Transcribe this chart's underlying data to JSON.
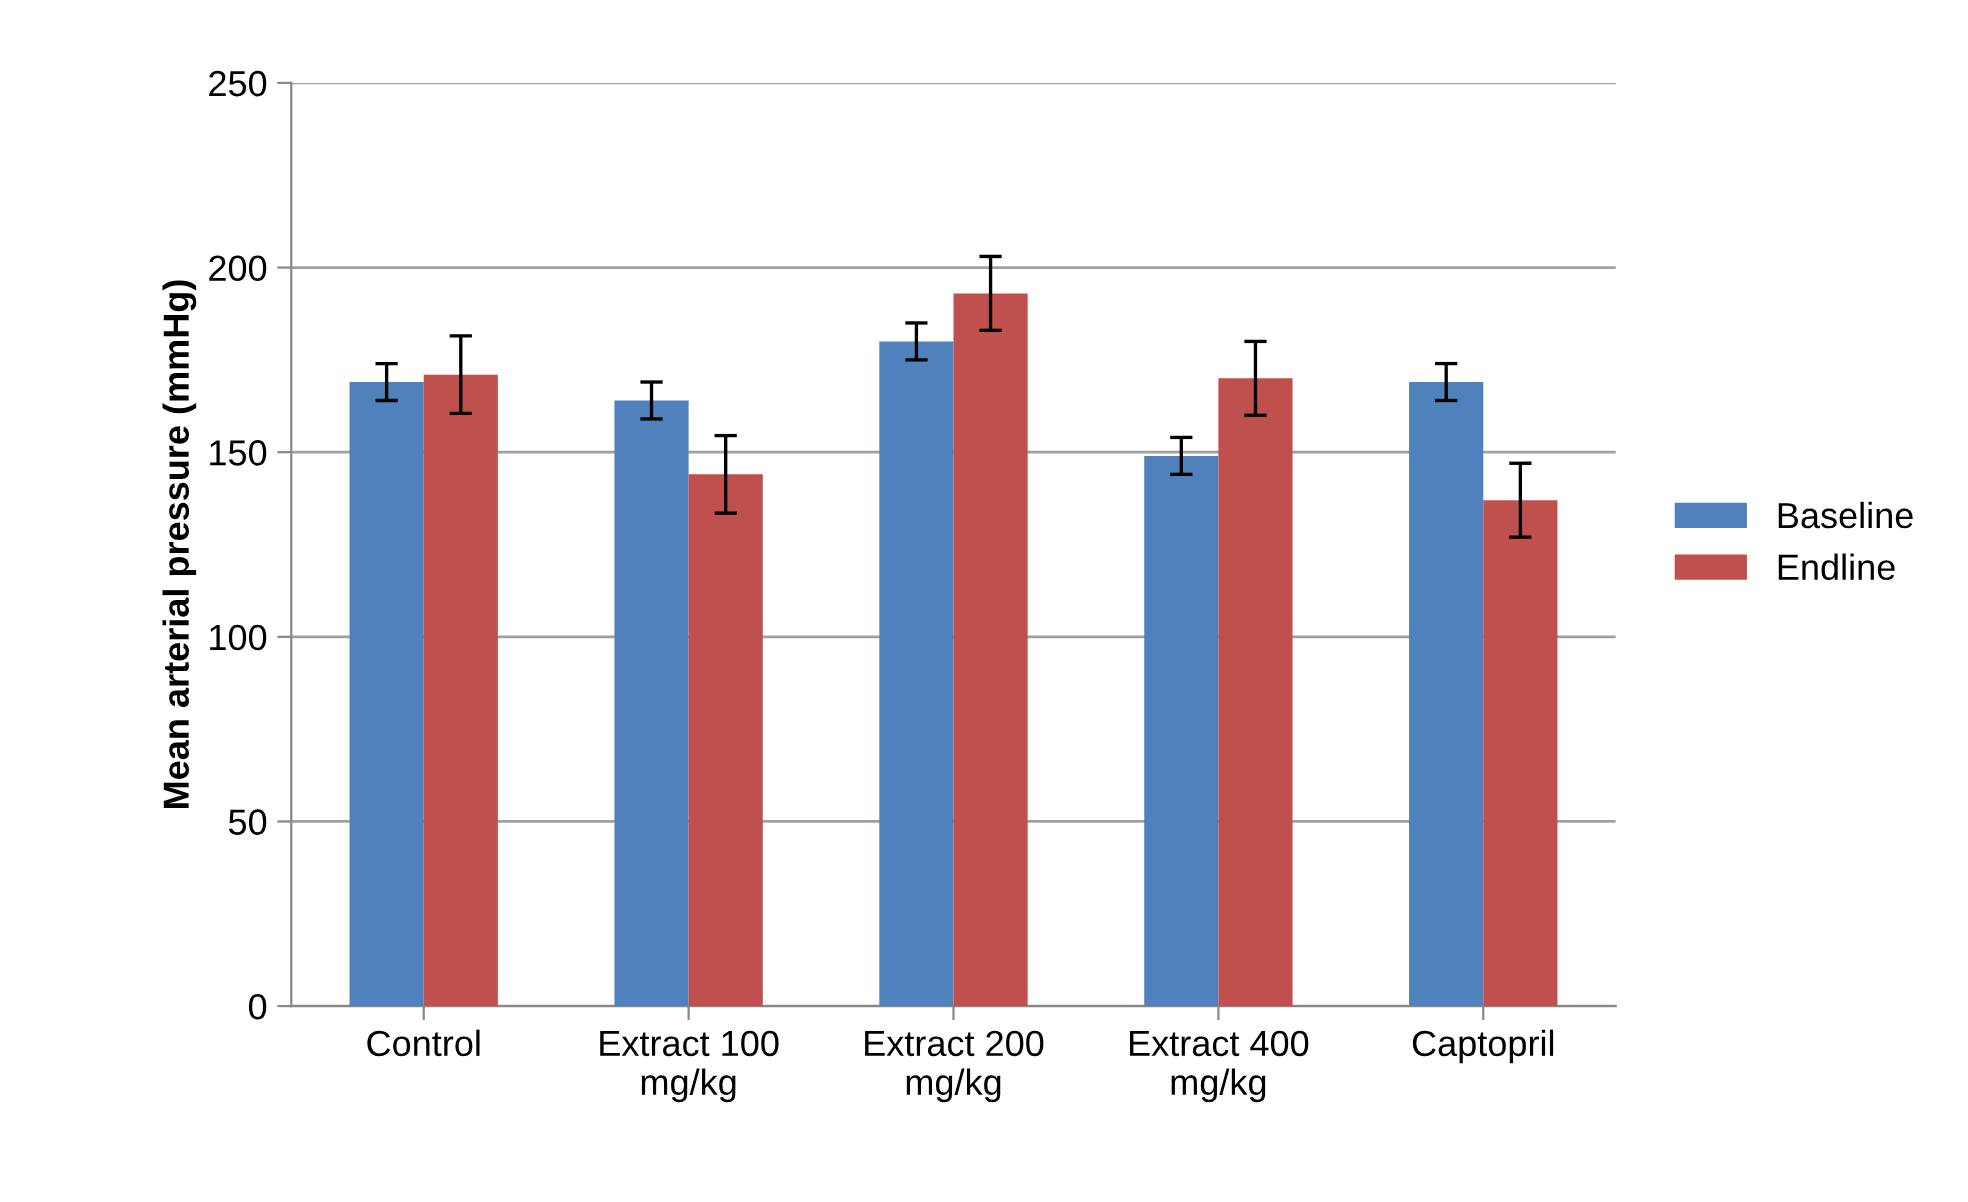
{
  "chart_data": {
    "type": "bar",
    "ylabel": "Mean arterial pressure (mmHg)",
    "categories": [
      "Control",
      "Extract 100\nmg/kg",
      "Extract 200\nmg/kg",
      "Extract 400\nmg/kg",
      "Captopril"
    ],
    "series": [
      {
        "name": "Baseline",
        "color": "#4f81bd",
        "values": [
          169,
          164,
          180,
          149,
          169
        ],
        "errors": [
          5,
          5,
          5,
          5,
          5
        ]
      },
      {
        "name": "Endline",
        "color": "#c0504d",
        "values": [
          171,
          144,
          193,
          170,
          137
        ],
        "errors": [
          10.5,
          10.5,
          10,
          10,
          10
        ]
      }
    ],
    "ylim": [
      0,
      250
    ],
    "yticks": [
      0,
      50,
      100,
      150,
      200,
      250
    ],
    "grid": "y",
    "legend": "right"
  }
}
